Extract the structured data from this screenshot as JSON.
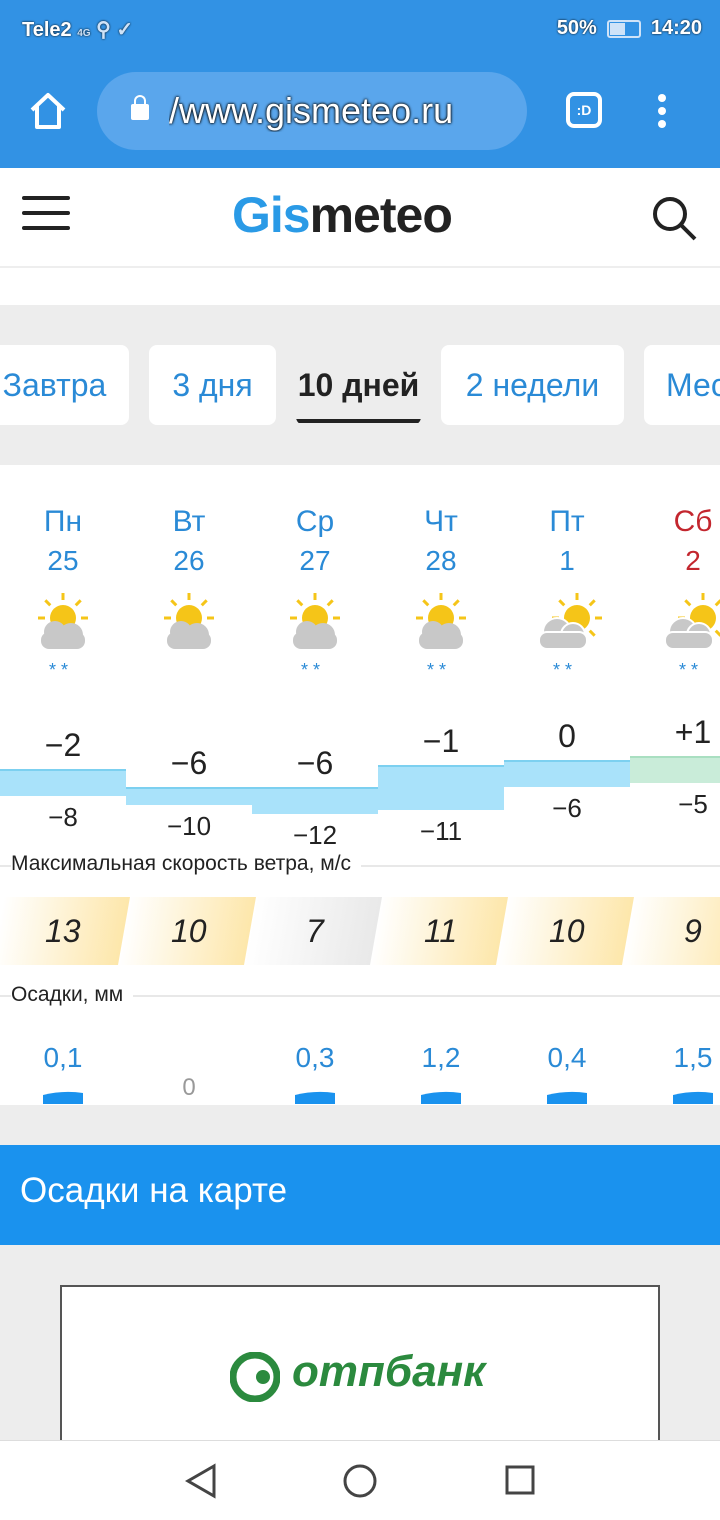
{
  "status": {
    "carrier": "Tele2",
    "network": "4G",
    "battery": "50%",
    "battery_level": 0.5,
    "time": "14:20"
  },
  "browser": {
    "url": "/www.gismeteo.ru"
  },
  "site": {
    "logo_a": "Gis",
    "logo_b": "meteo"
  },
  "tabs": [
    {
      "label": "Завтра"
    },
    {
      "label": "3 дня"
    },
    {
      "label": "10 дней",
      "active": true
    },
    {
      "label": "2 недели"
    },
    {
      "label": "Месяц"
    }
  ],
  "days": [
    {
      "name": "Пн",
      "date": "25",
      "icon": "sun-cloud-snow",
      "tmax": "−2",
      "tmin": "−8",
      "max": -2,
      "min": -8,
      "wind": "13",
      "precip": "0,1"
    },
    {
      "name": "Вт",
      "date": "26",
      "icon": "sun-cloud",
      "tmax": "−6",
      "tmin": "−10",
      "max": -6,
      "min": -10,
      "wind": "10",
      "precip": "0"
    },
    {
      "name": "Ср",
      "date": "27",
      "icon": "sun-cloud-snow",
      "tmax": "−6",
      "tmin": "−12",
      "max": -6,
      "min": -12,
      "wind": "7",
      "precip": "0,3"
    },
    {
      "name": "Чт",
      "date": "28",
      "icon": "sun-cloud-snow",
      "tmax": "−1",
      "tmin": "−11",
      "max": -1,
      "min": -11,
      "wind": "11",
      "precip": "1,2"
    },
    {
      "name": "Пт",
      "date": "1",
      "icon": "cloud-sun-snow",
      "tmax": "0",
      "tmin": "−6",
      "max": 0,
      "min": -6,
      "wind": "10",
      "precip": "0,4"
    },
    {
      "name": "Сб",
      "date": "2",
      "icon": "cloud-sun-snow",
      "tmax": "+1",
      "tmin": "−5",
      "max": 1,
      "min": -5,
      "wind": "9",
      "precip": "1,5",
      "weekend": true
    }
  ],
  "labels": {
    "wind": "Максимальная скорость ветра, м/с",
    "precip": "Осадки, мм"
  },
  "map_banner": "Осадки на карте",
  "ad": {
    "brand": "отпбанк"
  }
}
